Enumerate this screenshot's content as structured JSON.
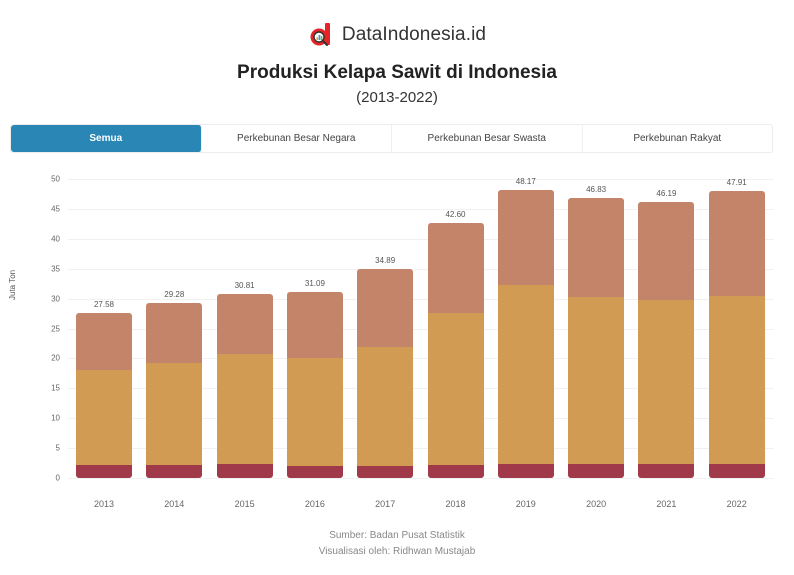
{
  "brand": {
    "name": "DataIndonesia.id",
    "logo_icon": "magnifier-d-logo-icon",
    "logo_color": "#e52528"
  },
  "header": {
    "title": "Produksi Kelapa Sawit di Indonesia",
    "subtitle": "(2013-2022)"
  },
  "tabs": [
    {
      "label": "Semua",
      "active": true
    },
    {
      "label": "Perkebunan Besar Negara",
      "active": false
    },
    {
      "label": "Perkebunan Besar Swasta",
      "active": false
    },
    {
      "label": "Perkebunan Rakyat",
      "active": false
    }
  ],
  "colors": {
    "tab_active": "#2a86b5",
    "perkebunan_rakyat": "#c4846a",
    "perkebunan_besar_swasta": "#d29b54",
    "perkebunan_besar_negara": "#a03a4a"
  },
  "chart_data": {
    "type": "bar",
    "stacked": true,
    "title": "Produksi Kelapa Sawit di Indonesia",
    "subtitle": "(2013-2022)",
    "xlabel": "",
    "ylabel": "Juta Ton",
    "ylim": [
      0,
      50
    ],
    "yticks": [
      0,
      5,
      10,
      15,
      20,
      25,
      30,
      35,
      40,
      45,
      50
    ],
    "grid": true,
    "legend_position": "none (tabs above chart act as filter)",
    "categories": [
      "2013",
      "2014",
      "2015",
      "2016",
      "2017",
      "2018",
      "2019",
      "2020",
      "2021",
      "2022"
    ],
    "series": [
      {
        "name": "Perkebunan Besar Negara",
        "color": "#a03a4a",
        "values": [
          2.15,
          2.23,
          2.28,
          1.99,
          2.04,
          2.19,
          2.33,
          2.37,
          2.3,
          2.38
        ]
      },
      {
        "name": "Perkebunan Besar Swasta",
        "color": "#d29b54",
        "values": [
          15.85,
          16.97,
          18.52,
          18.06,
          19.86,
          25.41,
          29.95,
          27.95,
          27.51,
          28.02
        ]
      },
      {
        "name": "Perkebunan Rakyat",
        "color": "#c4846a",
        "values": [
          9.58,
          10.08,
          10.01,
          11.04,
          12.99,
          15.0,
          15.89,
          16.51,
          16.38,
          17.51
        ]
      }
    ],
    "totals": [
      27.58,
      29.28,
      30.81,
      31.09,
      34.89,
      42.6,
      48.17,
      46.83,
      46.19,
      47.91
    ],
    "total_labels": [
      "27.58",
      "29.28",
      "30.81",
      "31.09",
      "34.89",
      "42.60",
      "48.17",
      "46.83",
      "46.19",
      "47.91"
    ]
  },
  "footer": {
    "source": "Sumber: Badan Pusat Statistik",
    "credit": "Visualisasi oleh: Ridhwan Mustajab"
  }
}
